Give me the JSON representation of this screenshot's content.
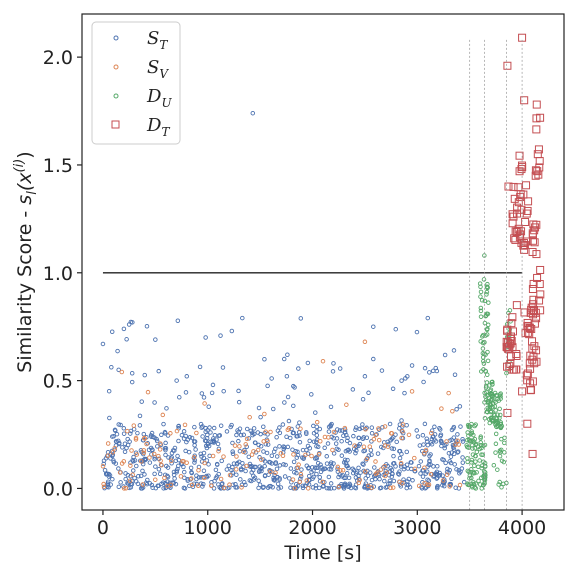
{
  "chart_data": {
    "type": "scatter",
    "xlabel": "Time [s]",
    "ylabel": "Similarity Score - s_l(x^(i))",
    "ylabel_parts": {
      "main": "Similarity Score - ",
      "s": "s",
      "l": "l",
      "open": "(x",
      "i": "(i)",
      "close": ")"
    },
    "xlim": [
      -200,
      4400
    ],
    "ylim": [
      -0.1,
      2.2
    ],
    "xticks": [
      0,
      1000,
      2000,
      3000,
      4000
    ],
    "xtick_labels": [
      "0",
      "1000",
      "2000",
      "3000",
      "4000"
    ],
    "yticks": [
      0.0,
      0.5,
      1.0,
      1.5,
      2.0
    ],
    "ytick_labels": [
      "0.0",
      "0.5",
      "1.0",
      "1.5",
      "2.0"
    ],
    "grid": false,
    "legend_position": "top-left",
    "threshold_line": {
      "y": 1.0,
      "x_start": 0,
      "x_end": 4000,
      "color": "#222222"
    },
    "vertical_lines": {
      "x": [
        3500,
        3640,
        3850,
        4000
      ],
      "y_top": 2.08,
      "color": "#999999"
    },
    "series": [
      {
        "name": "S_T",
        "base": "S",
        "sub": "T",
        "marker": "circle",
        "color": "#4c72b0",
        "clusters": [
          {
            "x_range": [
              0,
              3450
            ],
            "y_range": [
              0.0,
              0.3
            ],
            "count": 900
          },
          {
            "x_range": [
              0,
              3450
            ],
            "y_range": [
              0.3,
              0.6
            ],
            "count": 60
          },
          {
            "x_range": [
              0,
              3300
            ],
            "y_range": [
              0.6,
              0.8
            ],
            "count": 12
          }
        ],
        "points": [
          [
            0,
            0.67
          ],
          [
            150,
            0.55
          ],
          [
            200,
            0.74
          ],
          [
            250,
            0.76
          ],
          [
            1430,
            1.74
          ],
          [
            1330,
            0.79
          ],
          [
            1230,
            0.73
          ],
          [
            980,
            0.7
          ],
          [
            500,
            0.69
          ],
          [
            800,
            0.52
          ],
          [
            1050,
            0.48
          ],
          [
            1300,
            0.4
          ],
          [
            1760,
            0.62
          ],
          [
            1610,
            0.51
          ],
          [
            2200,
            0.58
          ],
          [
            2580,
            0.75
          ],
          [
            2500,
            0.52
          ],
          [
            2850,
            0.5
          ],
          [
            3100,
            0.79
          ],
          [
            2950,
            0.57
          ],
          [
            3350,
            0.64
          ],
          [
            2580,
            0.6
          ],
          [
            1730,
            0.6
          ]
        ]
      },
      {
        "name": "S_V",
        "base": "S",
        "sub": "V",
        "marker": "circle",
        "color": "#dd8452",
        "clusters": [
          {
            "x_range": [
              0,
              3450
            ],
            "y_range": [
              0.0,
              0.28
            ],
            "count": 160
          },
          {
            "x_range": [
              0,
              3450
            ],
            "y_range": [
              0.28,
              0.45
            ],
            "count": 12
          }
        ],
        "points": [
          [
            180,
            0.54
          ],
          [
            2100,
            0.59
          ],
          [
            2500,
            0.68
          ],
          [
            2950,
            0.45
          ],
          [
            3230,
            0.37
          ],
          [
            1400,
            0.33
          ]
        ]
      },
      {
        "name": "D_U",
        "base": "D",
        "sub": "U",
        "marker": "circle",
        "color": "#55a868",
        "clusters": [
          {
            "x_range": [
              3470,
              3560
            ],
            "y_range": [
              0.0,
              0.3
            ],
            "count": 60
          },
          {
            "x_range": [
              3560,
              3650
            ],
            "y_range": [
              0.0,
              0.25
            ],
            "count": 40
          },
          {
            "x_range": [
              3600,
              3680
            ],
            "y_range": [
              0.5,
              0.98
            ],
            "count": 45
          },
          {
            "x_range": [
              3640,
              3720
            ],
            "y_range": [
              0.3,
              0.5
            ],
            "count": 40
          },
          {
            "x_range": [
              3700,
              3800
            ],
            "y_range": [
              0.28,
              0.45
            ],
            "count": 45
          },
          {
            "x_range": [
              3720,
              3850
            ],
            "y_range": [
              0.0,
              0.3
            ],
            "count": 25
          },
          {
            "x_range": [
              3850,
              3900
            ],
            "y_range": [
              0.5,
              0.85
            ],
            "count": 15
          }
        ],
        "points": [
          [
            3640,
            1.08
          ],
          [
            3600,
            0.95
          ],
          [
            3660,
            0.9
          ]
        ]
      },
      {
        "name": "D_T",
        "base": "D",
        "sub": "T",
        "marker": "square",
        "color": "#c44e52",
        "clusters": [
          {
            "x_range": [
              3850,
              3950
            ],
            "y_range": [
              0.55,
              0.8
            ],
            "count": 28
          },
          {
            "x_range": [
              3900,
              4000
            ],
            "y_range": [
              1.0,
              1.4
            ],
            "count": 18
          },
          {
            "x_range": [
              3960,
              4060
            ],
            "y_range": [
              1.1,
              1.6
            ],
            "count": 20
          },
          {
            "x_range": [
              4020,
              4140
            ],
            "y_range": [
              0.45,
              0.85
            ],
            "count": 35
          },
          {
            "x_range": [
              4100,
              4180
            ],
            "y_range": [
              0.8,
              1.25
            ],
            "count": 22
          },
          {
            "x_range": [
              4120,
              4180
            ],
            "y_range": [
              1.4,
              1.72
            ],
            "count": 10
          }
        ],
        "points": [
          [
            3860,
            1.96
          ],
          [
            4000,
            2.09
          ],
          [
            4140,
            1.78
          ],
          [
            4100,
            0.16
          ],
          [
            3870,
            1.4
          ],
          [
            3860,
            0.35
          ],
          [
            3950,
            0.85
          ],
          [
            4050,
            0.3
          ],
          [
            4150,
            1.55
          ],
          [
            4020,
            1.8
          ],
          [
            4000,
            0.45
          ]
        ]
      }
    ]
  }
}
